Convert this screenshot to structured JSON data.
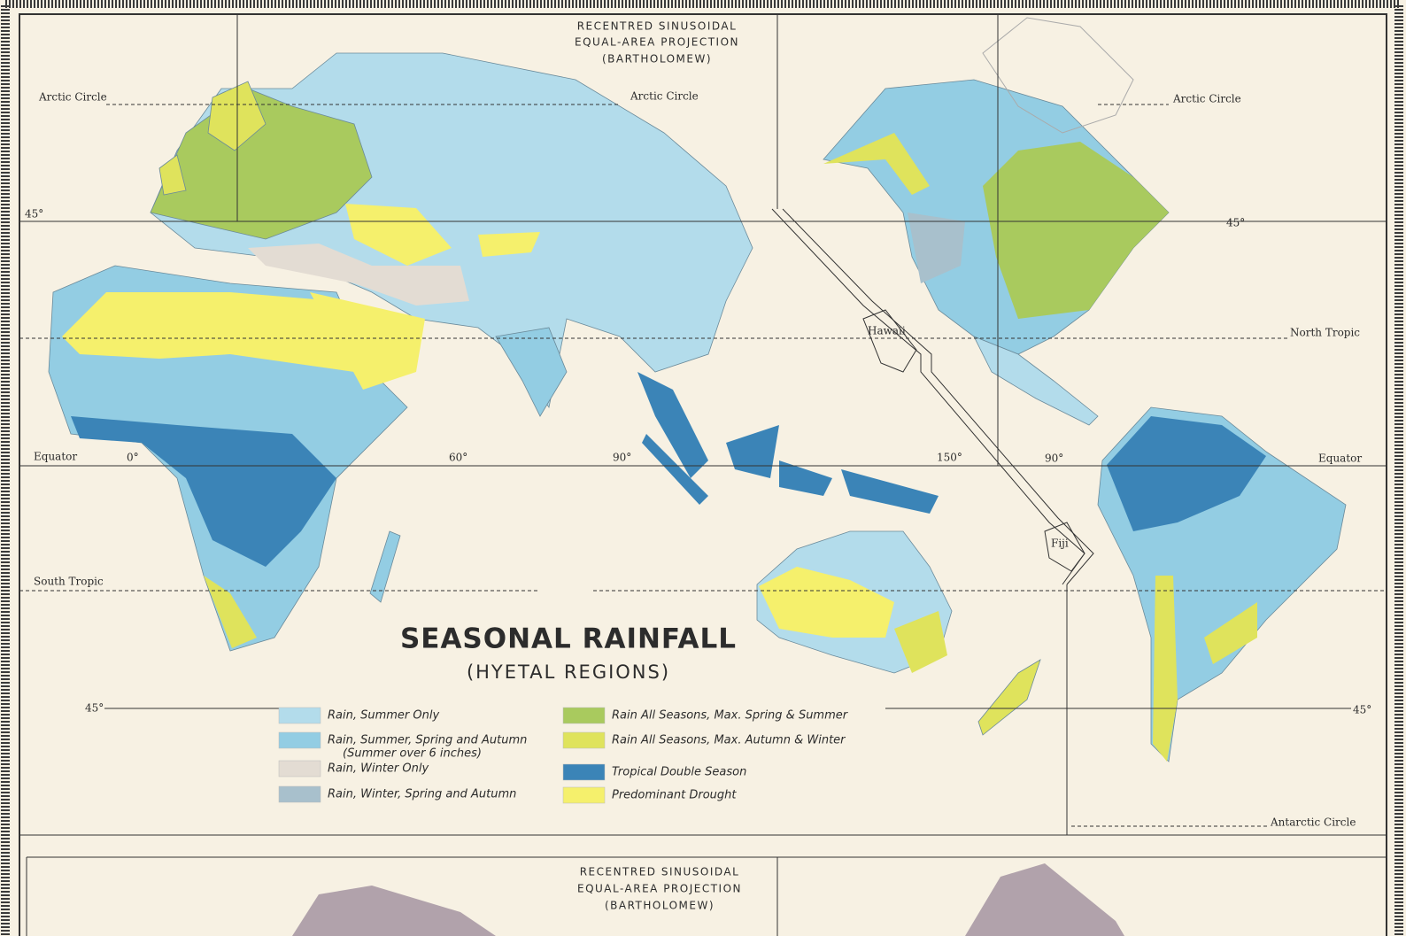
{
  "projection_note": [
    "RECENTRED SINUSOIDAL",
    "EQUAL-AREA PROJECTION",
    "(BARTHOLOMEW)"
  ],
  "title": "SEASONAL RAINFALL",
  "subtitle": "(HYETAL REGIONS)",
  "map_labels": [
    "Arctic Circle",
    "Arctic Circle",
    "Arctic Circle",
    "45°",
    "45°",
    "45°",
    "45°",
    "North Tropic",
    "Equator",
    "Equator",
    "South Tropic",
    "Antarctic Circle",
    "0°",
    "60°",
    "90°",
    "150°",
    "90°",
    "Hawaii",
    "Fiji"
  ],
  "legend": {
    "items": [
      {
        "label": "Rain, Summer Only",
        "color": "#b3dceb"
      },
      {
        "label": "Rain, Summer, Spring and Autumn",
        "note": "(Summer over 6 inches)",
        "color": "#93cde3"
      },
      {
        "label": "Rain, Winter Only",
        "color": "#e3dcd3"
      },
      {
        "label": "Rain, Winter, Spring and Autumn",
        "color": "#a8c0cc"
      },
      {
        "label": "Rain All Seasons, Max. Spring & Summer",
        "color": "#a9ca5e"
      },
      {
        "label": "Rain All Seasons, Max. Autumn & Winter",
        "color": "#dfe35c"
      },
      {
        "label": "Tropical Double Season",
        "color": "#3b84b7"
      },
      {
        "label": "Predominant Drought",
        "color": "#f5f06c"
      }
    ]
  },
  "lower_projection_note": [
    "RECENTRED SINUSOIDAL",
    "EQUAL-AREA PROJECTION",
    "(BARTHOLOMEW)"
  ]
}
